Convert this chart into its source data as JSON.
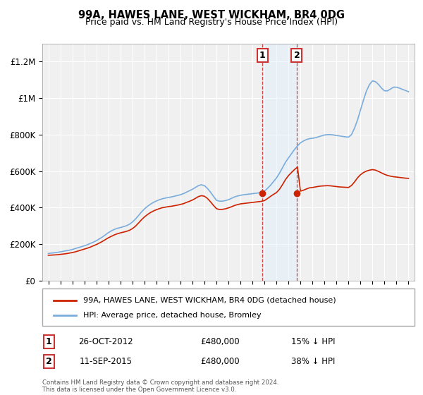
{
  "title": "99A, HAWES LANE, WEST WICKHAM, BR4 0DG",
  "subtitle": "Price paid vs. HM Land Registry's House Price Index (HPI)",
  "ylabel_ticks": [
    "£0",
    "£200K",
    "£400K",
    "£600K",
    "£800K",
    "£1M",
    "£1.2M"
  ],
  "ytick_values": [
    0,
    200000,
    400000,
    600000,
    800000,
    1000000,
    1200000
  ],
  "ylim": [
    0,
    1300000
  ],
  "xlim_start": 1994.5,
  "xlim_end": 2025.5,
  "sale1_x": 2012.82,
  "sale1_y": 480000,
  "sale2_x": 2015.69,
  "sale2_y": 480000,
  "sale1_label": "1",
  "sale2_label": "2",
  "sale1_date": "26-OCT-2012",
  "sale1_price": "£480,000",
  "sale1_hpi": "15% ↓ HPI",
  "sale2_date": "11-SEP-2015",
  "sale2_price": "£480,000",
  "sale2_hpi": "38% ↓ HPI",
  "legend_red_label": "99A, HAWES LANE, WEST WICKHAM, BR4 0DG (detached house)",
  "legend_blue_label": "HPI: Average price, detached house, Bromley",
  "footer": "Contains HM Land Registry data © Crown copyright and database right 2024.\nThis data is licensed under the Open Government Licence v3.0.",
  "hpi_color": "#7aaddc",
  "price_color": "#cc2200",
  "background_color": "#f0f0f0",
  "grid_color": "#ffffff",
  "shade_color": "#ddeeff"
}
